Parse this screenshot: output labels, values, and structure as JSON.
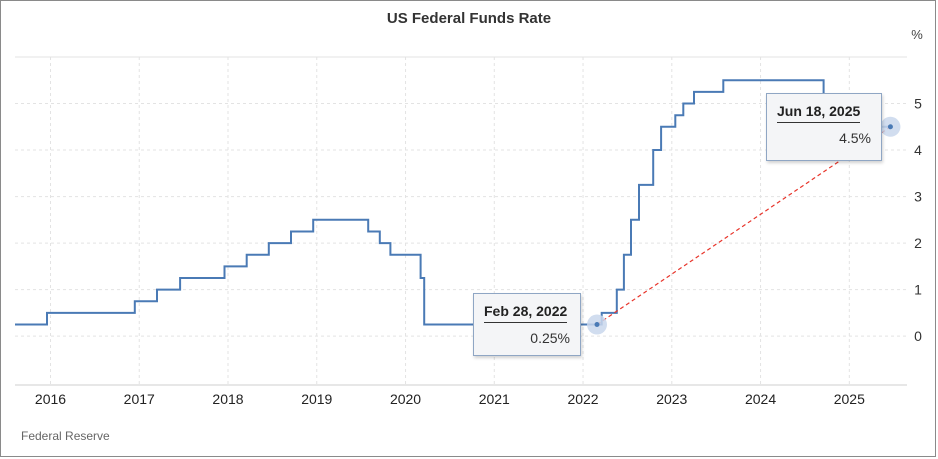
{
  "source": "Federal Reserve",
  "colors": {
    "line": "#4a7ab5",
    "trend": "#e8342a",
    "marker": "#c9d7ec",
    "grid": "#e3e3e3"
  },
  "chart_data": {
    "type": "line",
    "title": "US Federal Funds Rate",
    "ylabel": "%",
    "xlabel": "",
    "xlim": [
      2015.6,
      2025.65
    ],
    "ylim": [
      -1.05,
      6
    ],
    "y_ticks": [
      0,
      1,
      2,
      3,
      4,
      5
    ],
    "y_tick_labels": [
      "0",
      "1",
      "2",
      "3",
      "4",
      "5"
    ],
    "x_ticks": [
      2016,
      2017,
      2018,
      2019,
      2020,
      2021,
      2022,
      2023,
      2024,
      2025
    ],
    "x_tick_labels": [
      "2016",
      "2017",
      "2018",
      "2019",
      "2020",
      "2021",
      "2022",
      "2023",
      "2024",
      "2025"
    ],
    "grid": true,
    "series": [
      {
        "values_step_after": true,
        "x": [
          2015.6,
          2015.96,
          2016.95,
          2017.2,
          2017.46,
          2017.96,
          2018.21,
          2018.46,
          2018.71,
          2018.96,
          2019.58,
          2019.71,
          2019.83,
          2020.17,
          2020.21,
          2022.21,
          2022.38,
          2022.46,
          2022.54,
          2022.63,
          2022.79,
          2022.88,
          2023.04,
          2023.13,
          2023.25,
          2023.33,
          2023.58,
          2024.71,
          2024.86,
          2024.96,
          2025.46
        ],
        "y": [
          0.25,
          0.5,
          0.75,
          1.0,
          1.25,
          1.5,
          1.75,
          2.0,
          2.25,
          2.5,
          2.25,
          2.0,
          1.75,
          1.25,
          0.25,
          0.5,
          1.0,
          1.75,
          2.5,
          3.25,
          4.0,
          4.5,
          4.75,
          5.0,
          5.25,
          5.25,
          5.5,
          5.0,
          4.75,
          4.5,
          4.5
        ]
      }
    ],
    "trend_line": {
      "from": [
        "2022-02-28",
        0.25
      ],
      "to": [
        "2025-06-18",
        4.5
      ]
    },
    "annotations": [
      {
        "date": "Feb 28, 2022",
        "value": "0.25%"
      },
      {
        "date": "Jun 18, 2025",
        "value": "4.5%"
      }
    ]
  }
}
